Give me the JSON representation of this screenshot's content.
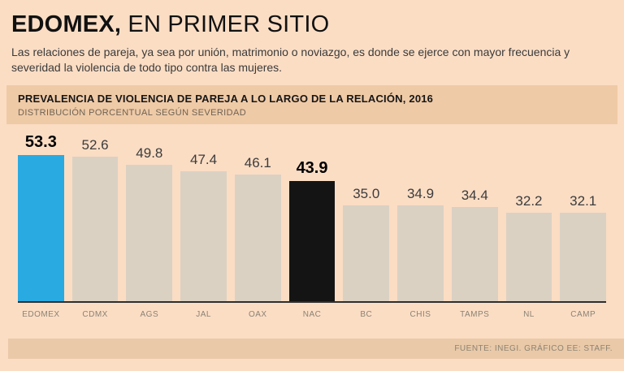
{
  "page": {
    "title_bold": "EDOMEX,",
    "title_rest": " EN PRIMER SITIO",
    "subtitle": "Las relaciones de pareja, ya sea por unión, matrimonio o noviazgo, es donde se ejerce con mayor frecuencia y severidad la violencia de todo tipo contra las mujeres."
  },
  "panel": {
    "title": "PREVALENCIA DE VIOLENCIA DE PAREJA A LO LARGO DE LA RELACIÓN, 2016",
    "subtitle": "DISTRIBUCIÓN PORCENTUAL SEGÚN SEVERIDAD"
  },
  "chart_data": {
    "type": "bar",
    "title": "PREVALENCIA DE VIOLENCIA DE PAREJA A LO LARGO DE LA RELACIÓN, 2016",
    "subtitle": "DISTRIBUCIÓN PORCENTUAL SEGÚN SEVERIDAD",
    "categories": [
      "EDOMEX",
      "CDMX",
      "AGS",
      "JAL",
      "OAX",
      "NAC",
      "BC",
      "CHIS",
      "TAMPS",
      "NL",
      "CAMP"
    ],
    "values": [
      53.3,
      52.6,
      49.8,
      47.4,
      46.1,
      43.9,
      35.0,
      34.9,
      34.4,
      32.2,
      32.1
    ],
    "unit": "percent",
    "ylim": [
      0,
      55
    ],
    "grid": false,
    "legend": "none",
    "bar_colors": [
      "#29ABE2",
      null,
      null,
      null,
      null,
      "#141414",
      null,
      null,
      null,
      null,
      null
    ],
    "emphasized_indices": [
      0,
      5
    ],
    "colors": {
      "default_bar": "#DAD1C3",
      "highlight_edomex": "#29ABE2",
      "highlight_nac": "#141414",
      "background": "#FBDDC4",
      "panel_band": "#EFCAA6",
      "footer_band": "#E9C9A8",
      "axis_line": "#2E2E2E"
    }
  },
  "footer": {
    "source": "FUENTE: INEGI. GRÁFICO EE: STAFF."
  }
}
